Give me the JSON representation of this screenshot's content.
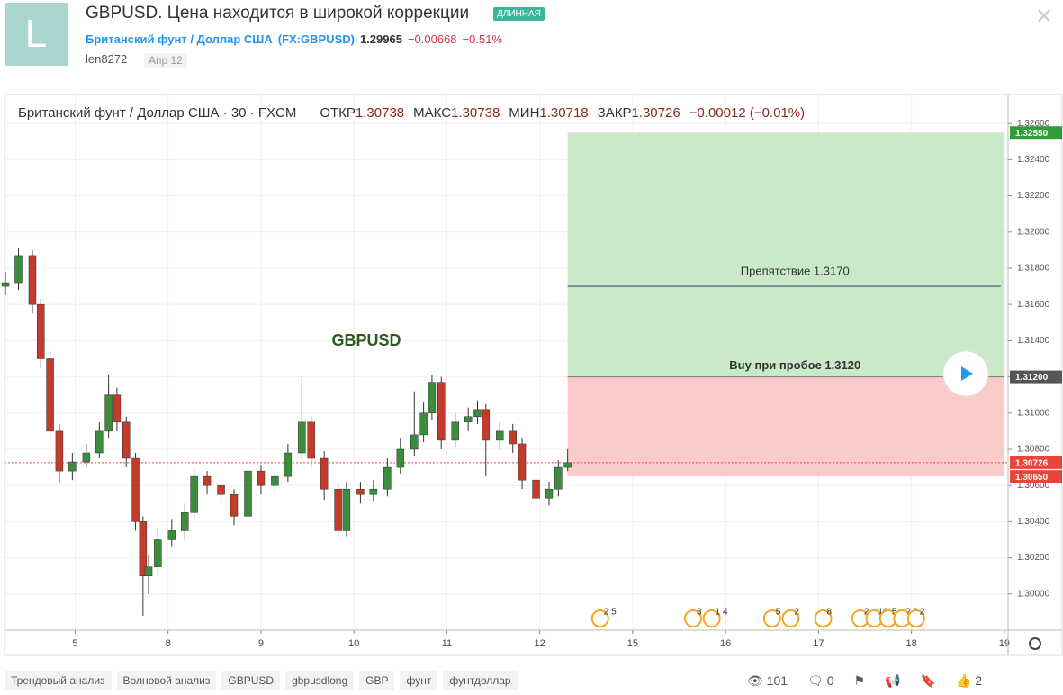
{
  "header": {
    "avatar": "L",
    "title": "GBPUSD. Цена находится в широкой коррекции",
    "tag": "ДЛИННАЯ",
    "symbol_name": "Британский фунт / Доллар США",
    "symbol": "(FX:GBPUSD)",
    "price": 1.29965,
    "change": "−0.00668",
    "change_pct": "−0.51%",
    "author": "len8272",
    "date": "Апр 12"
  },
  "chart_data": {
    "type": "candlestick",
    "legend": "Британский фунт / Доллар США · 30 · FXCM",
    "ohlc": [
      {
        "label": "ОТКР",
        "value": 1.30738
      },
      {
        "label": "МАКС",
        "value": 1.30738
      },
      {
        "label": "МИН",
        "value": 1.30718
      },
      {
        "label": "ЗАКР",
        "value": 1.30726
      }
    ],
    "ohlc_change": "−0.00012 (−0.01%)",
    "up_color": "#3d8b3d",
    "down_color": "#c23b2b",
    "x": [
      -0.75,
      -0.61,
      -0.46,
      -0.37,
      -0.27,
      -0.17,
      -0.03,
      0.12,
      0.26,
      0.36,
      0.45,
      0.55,
      0.65,
      0.73,
      0.79,
      0.89,
      1.04,
      1.18,
      1.28,
      1.42,
      1.57,
      1.71,
      1.86,
      2.0,
      2.15,
      2.29,
      2.44,
      2.54,
      2.68,
      2.83,
      2.92,
      3.07,
      3.21,
      3.36,
      3.5,
      3.65,
      3.75,
      3.84,
      3.94,
      4.09,
      4.23,
      4.33,
      4.42,
      4.57,
      4.71,
      4.81,
      4.96,
      5.1,
      5.2,
      5.3
    ],
    "open": [
      1.317,
      1.3172,
      1.3187,
      1.316,
      1.313,
      1.309,
      1.3068,
      1.3073,
      1.3078,
      1.309,
      1.311,
      1.3095,
      1.3075,
      1.304,
      1.301,
      1.3015,
      1.303,
      1.3035,
      1.3045,
      1.3065,
      1.306,
      1.3055,
      1.3043,
      1.3068,
      1.306,
      1.3065,
      1.3078,
      1.3095,
      1.3075,
      1.3058,
      1.3035,
      1.3058,
      1.3055,
      1.3058,
      1.307,
      1.308,
      1.3088,
      1.31,
      1.3117,
      1.3085,
      1.3095,
      1.3098,
      1.3102,
      1.3085,
      1.309,
      1.3083,
      1.3063,
      1.3053,
      1.3058,
      1.307
    ],
    "high": [
      1.3178,
      1.3191,
      1.319,
      1.3163,
      1.3134,
      1.3094,
      1.3078,
      1.3083,
      1.3095,
      1.3121,
      1.3114,
      1.3098,
      1.3078,
      1.3043,
      1.3022,
      1.3036,
      1.3041,
      1.305,
      1.307,
      1.3068,
      1.3064,
      1.3058,
      1.3073,
      1.3071,
      1.307,
      1.3083,
      1.312,
      1.3098,
      1.3079,
      1.3061,
      1.3062,
      1.3062,
      1.3063,
      1.3075,
      1.3086,
      1.3112,
      1.3106,
      1.3121,
      1.312,
      1.31,
      1.3103,
      1.3107,
      1.3105,
      1.3095,
      1.3094,
      1.3086,
      1.3066,
      1.3062,
      1.3074,
      1.308
    ],
    "low": [
      1.3165,
      1.3168,
      1.3155,
      1.3125,
      1.3085,
      1.3062,
      1.3063,
      1.307,
      1.3075,
      1.3086,
      1.309,
      1.307,
      1.3035,
      1.2988,
      1.3,
      1.301,
      1.3026,
      1.303,
      1.3042,
      1.3055,
      1.305,
      1.3038,
      1.304,
      1.3055,
      1.3056,
      1.3062,
      1.3074,
      1.307,
      1.3052,
      1.3031,
      1.3032,
      1.305,
      1.3051,
      1.3054,
      1.3066,
      1.3076,
      1.3084,
      1.3096,
      1.308,
      1.3081,
      1.309,
      1.3094,
      1.3065,
      1.308,
      1.3078,
      1.3058,
      1.3048,
      1.3049,
      1.3054,
      1.3068
    ],
    "close": [
      1.3172,
      1.3187,
      1.316,
      1.313,
      1.309,
      1.3068,
      1.3073,
      1.3078,
      1.309,
      1.311,
      1.3095,
      1.3075,
      1.304,
      1.301,
      1.3015,
      1.303,
      1.3035,
      1.3045,
      1.3065,
      1.306,
      1.3055,
      1.3043,
      1.3068,
      1.306,
      1.3065,
      1.3078,
      1.3095,
      1.3075,
      1.3058,
      1.3035,
      1.3058,
      1.3055,
      1.3058,
      1.307,
      1.308,
      1.3088,
      1.31,
      1.3117,
      1.3085,
      1.3095,
      1.3098,
      1.3102,
      1.3085,
      1.309,
      1.3083,
      1.3063,
      1.3053,
      1.3058,
      1.307,
      1.30726
    ],
    "xlim": [
      -0.76,
      10.04
    ],
    "xticks": [
      {
        "value": 0,
        "label": "5"
      },
      {
        "value": 1,
        "label": "8"
      },
      {
        "value": 2,
        "label": "9"
      },
      {
        "value": 3,
        "label": "10"
      },
      {
        "value": 4,
        "label": "11"
      },
      {
        "value": 5,
        "label": "12"
      },
      {
        "value": 6,
        "label": "15"
      },
      {
        "value": 7,
        "label": "16"
      },
      {
        "value": 8,
        "label": "17"
      },
      {
        "value": 9,
        "label": "18"
      },
      {
        "value": 10,
        "label": "19"
      }
    ],
    "ylim": [
      1.298,
      1.3276
    ],
    "yticks": [
      {
        "value": 1.3,
        "label": "1.30000"
      },
      {
        "value": 1.302,
        "label": "1.30200"
      },
      {
        "value": 1.304,
        "label": "1.30400"
      },
      {
        "value": 1.306,
        "label": "1.30600"
      },
      {
        "value": 1.308,
        "label": "1.30800"
      },
      {
        "value": 1.31,
        "label": "1.31000"
      },
      {
        "value": 1.312,
        "label": "1.31200"
      },
      {
        "value": 1.314,
        "label": "1.31400"
      },
      {
        "value": 1.316,
        "label": "1.31600"
      },
      {
        "value": 1.318,
        "label": "1.31800"
      },
      {
        "value": 1.32,
        "label": "1.32000"
      },
      {
        "value": 1.322,
        "label": "1.32200"
      },
      {
        "value": 1.324,
        "label": "1.32400"
      },
      {
        "value": 1.326,
        "label": "1.32600"
      }
    ],
    "grid": true,
    "position": {
      "x_from": 5.3,
      "x_to": 10,
      "entry": 1.312,
      "target": 1.3255,
      "stop": 1.3065,
      "target_color": "#c9e9c9",
      "stop_color": "#fbcaca"
    },
    "resistance": {
      "value": 1.317,
      "label": "Препятствие 1.3170",
      "color": "#34507a"
    },
    "entry_label": "Buy при пробое 1.3120",
    "symbol_label": "GBPUSD",
    "last_price": 1.30726,
    "price_tags": [
      {
        "value": 1.3255,
        "label": "1.32550",
        "color": "#2e9e3a"
      },
      {
        "value": 1.312,
        "label": "1.31200",
        "color": "#555555"
      },
      {
        "value": 1.30726,
        "label": "1.30726",
        "color": "#e8463a"
      },
      {
        "value": 1.3065,
        "label": "1.30650",
        "color": "#e8463a"
      }
    ],
    "events": [
      {
        "x": 5.65,
        "label": "2 5"
      },
      {
        "x": 6.65,
        "label": "3"
      },
      {
        "x": 6.85,
        "label": "1 4"
      },
      {
        "x": 7.5,
        "label": "5"
      },
      {
        "x": 7.7,
        "label": "2"
      },
      {
        "x": 8.05,
        "label": "8"
      },
      {
        "x": 8.45,
        "label": "2"
      },
      {
        "x": 8.6,
        "label": "16"
      },
      {
        "x": 8.75,
        "label": "5"
      },
      {
        "x": 8.9,
        "label": "? ?"
      },
      {
        "x": 9.05,
        "label": "2"
      }
    ]
  },
  "footer": {
    "tags": [
      "Трендовый анализ",
      "Волновой анализ",
      "GBPUSD",
      "gbpusdlong",
      "GBP",
      "фунт",
      "фунтдоллар"
    ],
    "views": 101,
    "comments": 0,
    "likes": 2
  }
}
